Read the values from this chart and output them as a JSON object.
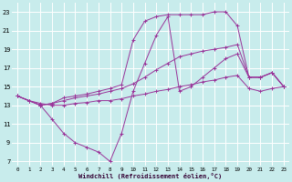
{
  "xlabel": "Windchill (Refroidissement éolien,°C)",
  "xlim": [
    -0.5,
    23.5
  ],
  "ylim": [
    6.5,
    24
  ],
  "yticks": [
    7,
    9,
    11,
    13,
    15,
    17,
    19,
    21,
    23
  ],
  "xticks": [
    0,
    1,
    2,
    3,
    4,
    5,
    6,
    7,
    8,
    9,
    10,
    11,
    12,
    13,
    14,
    15,
    16,
    17,
    18,
    19,
    20,
    21,
    22,
    23
  ],
  "bg_color": "#c8ecec",
  "grid_color": "#ffffff",
  "line_color": "#993399",
  "lines": [
    {
      "x": [
        0,
        1,
        2,
        3,
        4,
        5,
        6,
        7,
        8,
        9,
        10,
        11,
        12,
        13,
        14,
        15,
        16,
        17,
        18,
        19,
        20,
        21,
        22,
        23
      ],
      "y": [
        14,
        13.5,
        13.2,
        13.0,
        13.0,
        13.2,
        13.3,
        13.5,
        13.5,
        13.7,
        14.0,
        14.2,
        14.5,
        14.7,
        15.0,
        15.2,
        15.5,
        15.7,
        16.0,
        16.2,
        14.8,
        14.5,
        14.8,
        15.0
      ]
    },
    {
      "x": [
        0,
        1,
        2,
        3,
        4,
        5,
        6,
        7,
        8,
        9,
        10,
        11,
        12,
        13,
        14,
        15,
        16,
        17,
        18,
        19,
        20,
        21,
        22,
        23
      ],
      "y": [
        14,
        13.5,
        13.0,
        13.2,
        13.5,
        13.8,
        14.0,
        14.2,
        14.5,
        14.8,
        15.3,
        16.0,
        16.8,
        17.5,
        18.2,
        18.5,
        18.8,
        19.0,
        19.2,
        19.5,
        16.0,
        16.0,
        16.5,
        15.0
      ]
    },
    {
      "x": [
        0,
        1,
        2,
        3,
        4,
        5,
        6,
        7,
        8,
        9,
        10,
        11,
        12,
        13,
        14,
        15,
        16,
        17,
        18,
        19,
        20,
        21,
        22,
        23
      ],
      "y": [
        14,
        13.5,
        13.0,
        13.2,
        13.8,
        14.0,
        14.2,
        14.5,
        14.8,
        15.2,
        20.0,
        22.0,
        22.5,
        22.7,
        22.7,
        22.7,
        22.7,
        23.0,
        23.0,
        21.5,
        16.0,
        16.0,
        16.5,
        15.0
      ]
    },
    {
      "x": [
        0,
        1,
        2,
        3,
        4,
        5,
        6,
        7,
        8,
        9,
        10,
        11,
        12,
        13,
        14,
        15,
        16,
        17,
        18,
        19,
        20,
        21,
        22,
        23
      ],
      "y": [
        14,
        13.5,
        13.0,
        11.5,
        10.0,
        9.0,
        8.5,
        8.0,
        7.0,
        10.0,
        14.5,
        17.5,
        20.5,
        22.5,
        14.5,
        15.0,
        16.0,
        17.0,
        18.0,
        18.5,
        16.0,
        16.0,
        16.5,
        15.0
      ]
    }
  ]
}
